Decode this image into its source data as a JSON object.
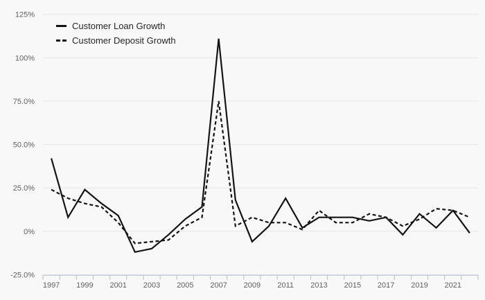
{
  "chart_data": {
    "type": "line",
    "title": "",
    "xlabel": "",
    "ylabel": "",
    "x": [
      1997,
      1998,
      1999,
      2000,
      2001,
      2002,
      2003,
      2004,
      2005,
      2006,
      2007,
      2008,
      2009,
      2010,
      2011,
      2012,
      2013,
      2014,
      2015,
      2016,
      2017,
      2018,
      2019,
      2020,
      2021,
      2022
    ],
    "series": [
      {
        "name": "Customer Loan Growth",
        "line_style": "solid",
        "values": [
          42,
          8,
          24,
          16,
          9,
          -12,
          -10,
          -2,
          7,
          14,
          111,
          18,
          -6,
          3,
          19,
          2,
          8,
          8,
          8,
          6,
          8,
          -2,
          10,
          2,
          12,
          -1
        ]
      },
      {
        "name": "Customer Deposit Growth",
        "line_style": "dashed",
        "values": [
          24,
          19,
          16,
          14,
          5,
          -7,
          -6,
          -5,
          3,
          8,
          75,
          3,
          8,
          5,
          5,
          1,
          12,
          5,
          5,
          10,
          8,
          3,
          7,
          13,
          12,
          8
        ]
      }
    ],
    "ylim": [
      -25,
      125
    ],
    "ytick_values": [
      125,
      100,
      75,
      50,
      25,
      0,
      -25
    ],
    "ytick_labels": [
      "125%",
      "100%",
      "75.0%",
      "50.0%",
      "25.0%",
      "0%",
      "-25.0%"
    ],
    "xtick_label_years": [
      1997,
      1999,
      2001,
      2003,
      2005,
      2007,
      2009,
      2011,
      2013,
      2015,
      2017,
      2019,
      2021
    ],
    "grid": "horizontal",
    "legend_position": "top-left"
  },
  "colors": {
    "background": "#f8f8f8",
    "gridline": "#e5e5e6",
    "axis": "#b4bdd4",
    "line": "#141414",
    "tick_label": "#5f5f5f",
    "legend_text": "#252525"
  }
}
